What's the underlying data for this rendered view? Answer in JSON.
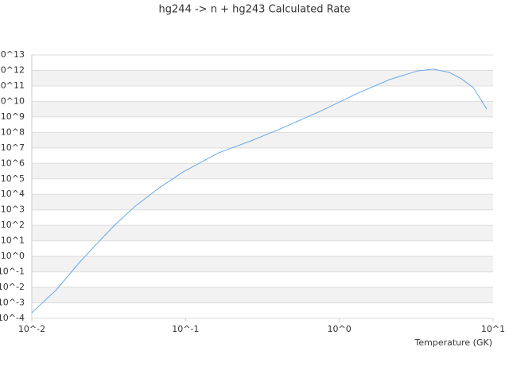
{
  "chart_data": {
    "type": "line",
    "title": "hg244 -> n + hg243 Calculated Rate",
    "x_label": "Temperature (GK)",
    "x_scale": "log",
    "y_scale": "log",
    "grid": true,
    "xlim": [
      0.01,
      10
    ],
    "ylim": [
      0.0001,
      10000000000000.0
    ],
    "xticks": [
      {
        "value": 0.01,
        "label": "10^-2"
      },
      {
        "value": 0.1,
        "label": "10^-1"
      },
      {
        "value": 1,
        "label": "10^0"
      },
      {
        "value": 10,
        "label": "10^1"
      }
    ],
    "yticks": [
      {
        "value": 0.0001,
        "label": "10^-4"
      },
      {
        "value": 0.001,
        "label": "10^-3"
      },
      {
        "value": 0.01,
        "label": "10^-2"
      },
      {
        "value": 0.1,
        "label": "10^-1"
      },
      {
        "value": 1,
        "label": "10^0"
      },
      {
        "value": 10,
        "label": "10^1"
      },
      {
        "value": 100,
        "label": "10^2"
      },
      {
        "value": 1000,
        "label": "10^3"
      },
      {
        "value": 10000.0,
        "label": "10^4"
      },
      {
        "value": 100000.0,
        "label": "10^5"
      },
      {
        "value": 1000000.0,
        "label": "10^6"
      },
      {
        "value": 10000000.0,
        "label": "10^7"
      },
      {
        "value": 100000000.0,
        "label": "10^8"
      },
      {
        "value": 1000000000.0,
        "label": "10^9"
      },
      {
        "value": 10000000000.0,
        "label": "10^10"
      },
      {
        "value": 100000000000.0,
        "label": "10^11"
      },
      {
        "value": 1000000000000.0,
        "label": "10^12"
      },
      {
        "value": 10000000000000.0,
        "label": "10^13"
      }
    ],
    "x": [
      0.01,
      0.0143,
      0.0204,
      0.0259,
      0.0349,
      0.0471,
      0.0673,
      0.0962,
      0.164,
      0.265,
      0.402,
      0.728,
      1.32,
      2.13,
      3.23,
      4.1,
      5.2,
      6.21,
      7.43,
      9.1
    ],
    "series": [
      {
        "color": "#6aa9e9",
        "values": [
          0.00023,
          0.0063,
          0.4,
          5.2,
          115,
          1740,
          26000,
          280000.0,
          4800000.0,
          28000000.0,
          150000000.0,
          2000000000.0,
          34000000000.0,
          260000000000.0,
          930000000000.0,
          1200000000000.0,
          740000000000.0,
          290000000000.0,
          78000000000.0,
          3200000000.0
        ]
      }
    ]
  }
}
